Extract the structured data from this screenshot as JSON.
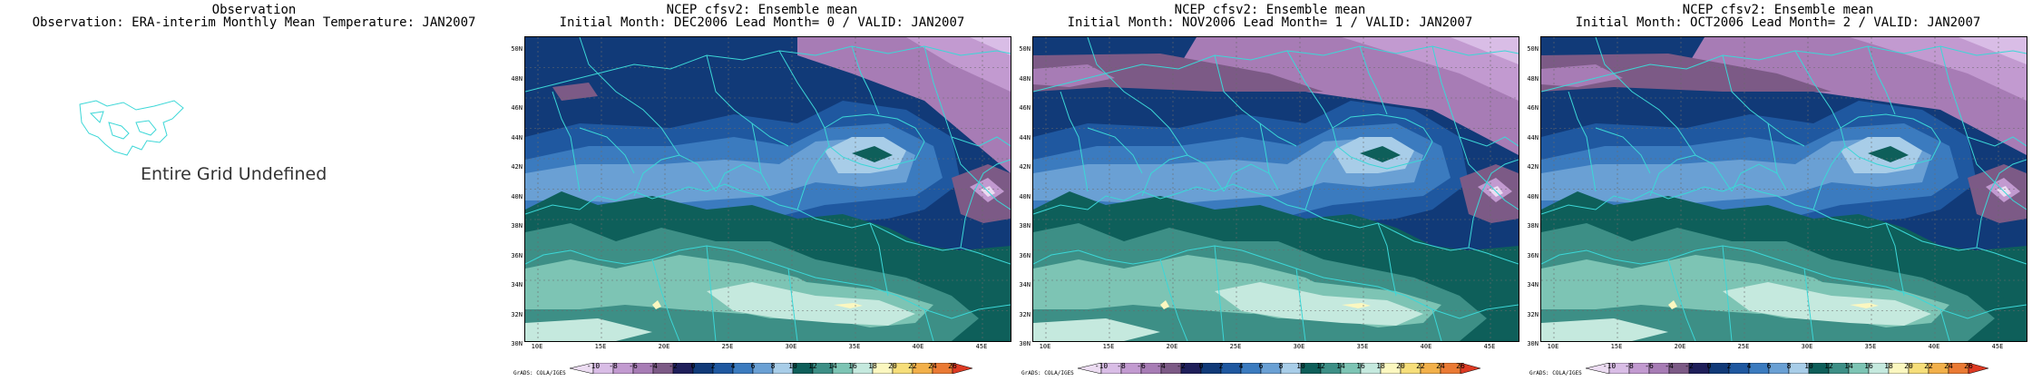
{
  "observation": {
    "title_line1": "Observation",
    "title_line2": "Observation: ERA-interim Monthly Mean Temperature: JAN2007",
    "undefined_text": "Entire Grid Undefined"
  },
  "panels": [
    {
      "title_line1": "NCEP cfsv2: Ensemble mean",
      "title_line2": "Initial Month: DEC2006   Lead Month= 0 / VALID: JAN2007"
    },
    {
      "title_line1": "NCEP cfsv2: Ensemble mean",
      "title_line2": "Initial Month: NOV2006   Lead Month= 1 / VALID: JAN2007"
    },
    {
      "title_line1": "NCEP cfsv2: Ensemble mean",
      "title_line2": "Initial Month: OCT2006   Lead Month= 2 / VALID: JAN2007"
    }
  ],
  "lat_labels": [
    "50N",
    "48N",
    "46N",
    "44N",
    "42N",
    "40N",
    "38N",
    "36N",
    "34N",
    "32N",
    "30N"
  ],
  "lon_labels": [
    "10E",
    "15E",
    "20E",
    "25E",
    "30E",
    "35E",
    "40E",
    "45E"
  ],
  "colorbar": {
    "labels": [
      "-10",
      "-8",
      "-6",
      "-4",
      "-2",
      "0",
      "2",
      "4",
      "6",
      "8",
      "10",
      "12",
      "14",
      "16",
      "18",
      "20",
      "22",
      "24",
      "26"
    ],
    "colors": [
      "#ecdcf2",
      "#d9bde6",
      "#c29ad0",
      "#a77cb5",
      "#7c5a86",
      "#1f1f5a",
      "#113a78",
      "#1f58a0",
      "#3b7bbf",
      "#6aa0d4",
      "#a8cde8",
      "#0e5f5a",
      "#3d8f86",
      "#7dc4b4",
      "#c5e9de",
      "#fbf7c0",
      "#f6de7a",
      "#f2b04a",
      "#ea7a34",
      "#dd3a23"
    ],
    "credit": "GrADS: COLA/IGES"
  },
  "map_colors": {
    "coast": "#3cd7d7",
    "grid": "#6b6b6b"
  }
}
